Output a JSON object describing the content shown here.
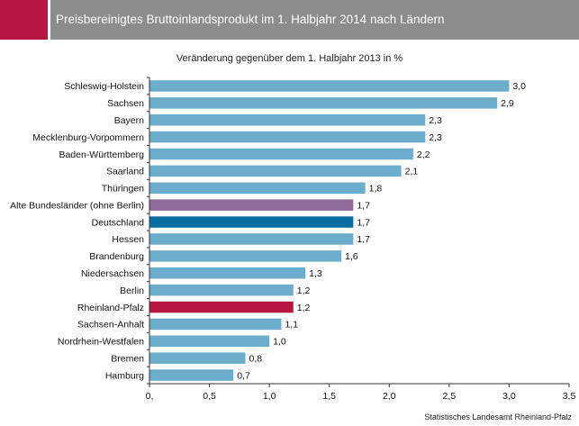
{
  "header": {
    "title": "Preisbereinigtes Bruttoinlandsprodukt im 1. Halbjahr 2014 nach Ländern"
  },
  "colors": {
    "header_bg": "#8c8c8c",
    "accent": "#b5163f",
    "bar_default": "#6cadcb",
    "bar_west": "#8e6b9a",
    "bar_germany": "#0a6fa0",
    "bar_rlp": "#b5163f"
  },
  "chart_data": {
    "type": "bar",
    "orientation": "horizontal",
    "title": "Veränderung gegenüber dem 1. Halbjahr 2013 in %",
    "categories": [
      "Schleswig-Holstein",
      "Sachsen",
      "Bayern",
      "Mecklenburg-Vorpommern",
      "Baden-Württemberg",
      "Saarland",
      "Thüringen",
      "Alte Bundesländer (ohne Berlin)",
      "Deutschland",
      "Hessen",
      "Brandenburg",
      "Niedersachsen",
      "Berlin",
      "Rheinland-Pfalz",
      "Sachsen-Anhalt",
      "Nordrhein-Westfalen",
      "Bremen",
      "Hamburg"
    ],
    "values": [
      3.0,
      2.9,
      2.3,
      2.3,
      2.2,
      2.1,
      1.8,
      1.7,
      1.7,
      1.7,
      1.6,
      1.3,
      1.2,
      1.2,
      1.1,
      1.0,
      0.8,
      0.7
    ],
    "value_labels": [
      "3,0",
      "2,9",
      "2,3",
      "2,3",
      "2,2",
      "2,1",
      "1,8",
      "1,7",
      "1,7",
      "1,7",
      "1,6",
      "1,3",
      "1,2",
      "1,2",
      "1,1",
      "1,0",
      "0,8",
      "0,7"
    ],
    "bar_colors": [
      "#6cadcb",
      "#6cadcb",
      "#6cadcb",
      "#6cadcb",
      "#6cadcb",
      "#6cadcb",
      "#6cadcb",
      "#8e6b9a",
      "#0a6fa0",
      "#6cadcb",
      "#6cadcb",
      "#6cadcb",
      "#6cadcb",
      "#b5163f",
      "#6cadcb",
      "#6cadcb",
      "#6cadcb",
      "#6cadcb"
    ],
    "xlim": [
      0,
      3.5
    ],
    "xticks": [
      0,
      0.5,
      1.0,
      1.5,
      2.0,
      2.5,
      3.0,
      3.5
    ],
    "xtick_labels": [
      "0,",
      "0,5",
      "1,0",
      "1,5",
      "2,0",
      "2,5",
      "3,0",
      "3,5"
    ],
    "grid": false,
    "legend": "none"
  },
  "footer": {
    "source": "Statistisches Landesamt Rheinland-Pfalz"
  }
}
